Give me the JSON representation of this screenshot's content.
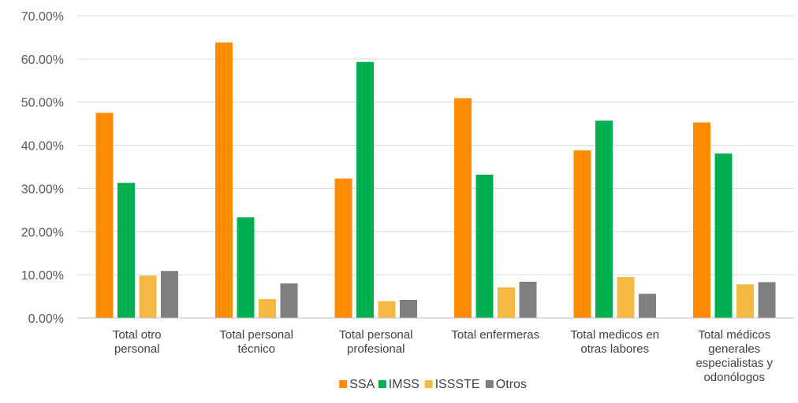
{
  "chart_data": {
    "type": "bar",
    "title": "",
    "xlabel": "",
    "ylabel": "",
    "ylim": [
      0,
      0.7
    ],
    "yticks": [
      "0.00%",
      "10.00%",
      "20.00%",
      "30.00%",
      "40.00%",
      "50.00%",
      "60.00%",
      "70.00%"
    ],
    "grid": true,
    "legend_position": "bottom",
    "categories": [
      [
        "Total otro",
        "personal"
      ],
      [
        "Total personal",
        "técnico"
      ],
      [
        "Total personal",
        "profesional"
      ],
      [
        "Total enfermeras"
      ],
      [
        "Total medicos en",
        "otras labores"
      ],
      [
        "Total médicos",
        "generales",
        "especialistas y",
        "odonólogos"
      ]
    ],
    "series": [
      {
        "name": "SSA",
        "color": "#FF8C00",
        "values": [
          0.475,
          0.638,
          0.323,
          0.509,
          0.388,
          0.453
        ]
      },
      {
        "name": "IMSS",
        "color": "#00B050",
        "values": [
          0.313,
          0.233,
          0.593,
          0.332,
          0.457,
          0.381
        ]
      },
      {
        "name": "ISSSTE",
        "color": "#F4B942",
        "values": [
          0.098,
          0.044,
          0.039,
          0.071,
          0.095,
          0.078
        ]
      },
      {
        "name": "Otros",
        "color": "#7F7F7F",
        "values": [
          0.109,
          0.08,
          0.042,
          0.084,
          0.056,
          0.083
        ]
      }
    ]
  }
}
